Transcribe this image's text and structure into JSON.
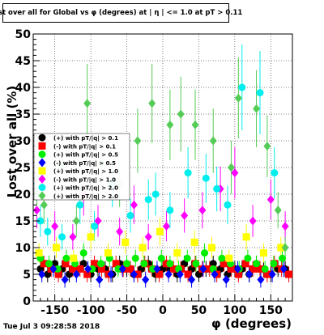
{
  "footer": "Tue Jul  3 09:28:58 2018",
  "chart_data": {
    "type": "scatter",
    "title": "Lost over all for Global vs φ (degrees) at | η | <= 1.0 at pT > 0.11",
    "xlabel": "φ (degrees)",
    "ylabel": "Lost over all (%)",
    "xlim": [
      -180,
      180
    ],
    "ylim": [
      0,
      50
    ],
    "xticks": [
      -150,
      -100,
      -50,
      0,
      50,
      100,
      150
    ],
    "yticks": [
      0,
      5,
      10,
      15,
      20,
      25,
      30,
      35,
      40,
      45,
      50
    ],
    "grid": true,
    "legend_position": "left",
    "series": [
      {
        "name": "(+) with pT/|q| > 0.1",
        "color": "#000000",
        "marker": "circle",
        "x": [
          -170,
          -160,
          -150,
          -140,
          -130,
          -120,
          -110,
          -100,
          -90,
          -80,
          -70,
          -60,
          -50,
          -40,
          -30,
          -20,
          -10,
          0,
          10,
          20,
          30,
          40,
          50,
          60,
          70,
          80,
          90,
          100,
          110,
          120,
          130,
          140,
          150,
          160,
          170
        ],
        "y": [
          6,
          5,
          7,
          6,
          5,
          6,
          7,
          5,
          6,
          6,
          5,
          7,
          6,
          5,
          6,
          7,
          5,
          6,
          6,
          5,
          7,
          6,
          5,
          6,
          7,
          6,
          5,
          6,
          6,
          5,
          7,
          6,
          5,
          6,
          6
        ]
      },
      {
        "name": "(-) with pT/|q| > 0.1",
        "color": "#ff0000",
        "marker": "square",
        "x": [
          -165,
          -155,
          -145,
          -135,
          -125,
          -115,
          -105,
          -95,
          -85,
          -75,
          -65,
          -55,
          -45,
          -35,
          -25,
          -15,
          -5,
          5,
          15,
          25,
          35,
          45,
          55,
          65,
          75,
          85,
          95,
          105,
          115,
          125,
          135,
          145,
          155,
          165,
          175
        ],
        "y": [
          7,
          6,
          5,
          7,
          6,
          6,
          5,
          7,
          6,
          5,
          7,
          6,
          6,
          5,
          7,
          6,
          5,
          7,
          6,
          6,
          5,
          7,
          6,
          6,
          5,
          7,
          6,
          5,
          7,
          6,
          6,
          5,
          7,
          6,
          5
        ]
      },
      {
        "name": "(+) with pT/|q| > 0.5",
        "color": "#00ee00",
        "marker": "circle",
        "x": [
          -170,
          -158,
          -146,
          -134,
          -122,
          -110,
          -98,
          -86,
          -74,
          -62,
          -50,
          -38,
          -26,
          -14,
          -2,
          10,
          22,
          34,
          46,
          58,
          70,
          82,
          94,
          106,
          118,
          130,
          142,
          154,
          166
        ],
        "y": [
          8,
          7,
          6,
          8,
          7,
          9,
          6,
          7,
          8,
          6,
          7,
          8,
          7,
          6,
          8,
          7,
          6,
          8,
          7,
          9,
          6,
          8,
          7,
          6,
          8,
          7,
          6,
          7,
          8
        ]
      },
      {
        "name": "(-) with pT/|q| > 0.5",
        "color": "#0000ff",
        "marker": "diamond",
        "x": [
          -168,
          -152,
          -136,
          -120,
          -104,
          -88,
          -72,
          -56,
          -40,
          -24,
          -8,
          8,
          24,
          40,
          56,
          72,
          88,
          104,
          120,
          136,
          152,
          168
        ],
        "y": [
          5,
          6,
          4,
          5,
          6,
          4,
          5,
          6,
          5,
          4,
          6,
          5,
          5,
          4,
          6,
          5,
          4,
          6,
          5,
          4,
          5,
          6
        ]
      },
      {
        "name": "(+) with pT/|q| > 1.0",
        "color": "#ffff00",
        "marker": "square",
        "x": [
          -172,
          -148,
          -124,
          -100,
          -76,
          -52,
          -28,
          -4,
          20,
          44,
          68,
          92,
          116,
          140,
          164
        ],
        "y": [
          9,
          10,
          8,
          12,
          9,
          11,
          10,
          13,
          9,
          11,
          10,
          8,
          12,
          9,
          10
        ]
      },
      {
        "name": "(-) with pT/|q| > 1.0",
        "color": "#ff00ff",
        "marker": "diamond",
        "x": [
          -175,
          -150,
          -125,
          -110,
          -90,
          -60,
          -40,
          -20,
          5,
          30,
          55,
          80,
          100,
          125,
          150,
          170
        ],
        "y": [
          17,
          14,
          12,
          20,
          15,
          13,
          18,
          12,
          14,
          16,
          17,
          21,
          24,
          15,
          19,
          14
        ]
      },
      {
        "name": "(+) with pT/|q| > 2.0",
        "color": "#00eeee",
        "marker": "circle",
        "x": [
          -170,
          -160,
          -140,
          -115,
          -95,
          -70,
          -45,
          -20,
          -10,
          10,
          35,
          60,
          75,
          90,
          110,
          135,
          155
        ],
        "y": [
          15,
          13,
          12,
          18,
          14,
          22,
          16,
          19,
          20,
          17,
          24,
          23,
          21,
          18,
          40,
          39,
          24
        ]
      },
      {
        "name": "(+) with pT/|q| > 2.0",
        "color": "#55cc55",
        "marker": "diamond",
        "x": [
          -175,
          -165,
          -140,
          -120,
          -105,
          -85,
          -60,
          -35,
          -15,
          10,
          25,
          45,
          70,
          95,
          105,
          130,
          145,
          160,
          170
        ],
        "y": [
          20,
          18,
          25,
          15,
          37,
          26,
          22,
          30,
          37,
          33,
          35,
          33,
          30,
          25,
          38,
          36,
          29,
          17,
          10
        ]
      }
    ]
  }
}
